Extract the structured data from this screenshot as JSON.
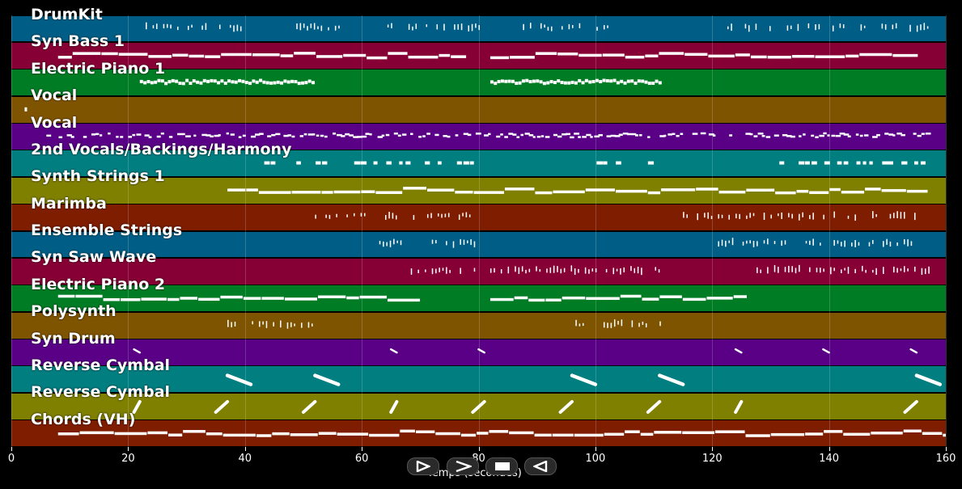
{
  "tracks": [
    {
      "name": "DrumKit",
      "color": "#005e86"
    },
    {
      "name": "Syn Bass 1",
      "color": "#870035"
    },
    {
      "name": "Electric Piano 1",
      "color": "#007c24"
    },
    {
      "name": "Vocal",
      "color": "#7f5400"
    },
    {
      "name": "Vocal",
      "color": "#5a0087"
    },
    {
      "name": "2nd Vocals/Backings/Harmony",
      "color": "#007e80"
    },
    {
      "name": "Synth Strings 1",
      "color": "#7f7f00"
    },
    {
      "name": "Marimba",
      "color": "#7f1d00"
    },
    {
      "name": "Ensemble Strings",
      "color": "#005e86"
    },
    {
      "name": "Syn Saw Wave",
      "color": "#870035"
    },
    {
      "name": "Electric Piano 2",
      "color": "#007c24"
    },
    {
      "name": "Polysynth",
      "color": "#7f5400"
    },
    {
      "name": "Syn Drum",
      "color": "#5a0087"
    },
    {
      "name": "Reverse Cymbal",
      "color": "#007e80"
    },
    {
      "name": "Reverse Cymbal",
      "color": "#7f7f00"
    },
    {
      "name": "Chords (VH)",
      "color": "#7f1d00"
    }
  ],
  "axis": {
    "xlabel": "Temps (secondes)",
    "ticks": [
      "0",
      "20",
      "40",
      "60",
      "80",
      "100",
      "120",
      "140",
      "160"
    ],
    "xlim": [
      0,
      160
    ]
  },
  "controls": {
    "play_icon": "play-icon",
    "forward_icon": "forward-icon",
    "stop_icon": "stop-icon",
    "rewind_icon": "rewind-icon"
  }
}
